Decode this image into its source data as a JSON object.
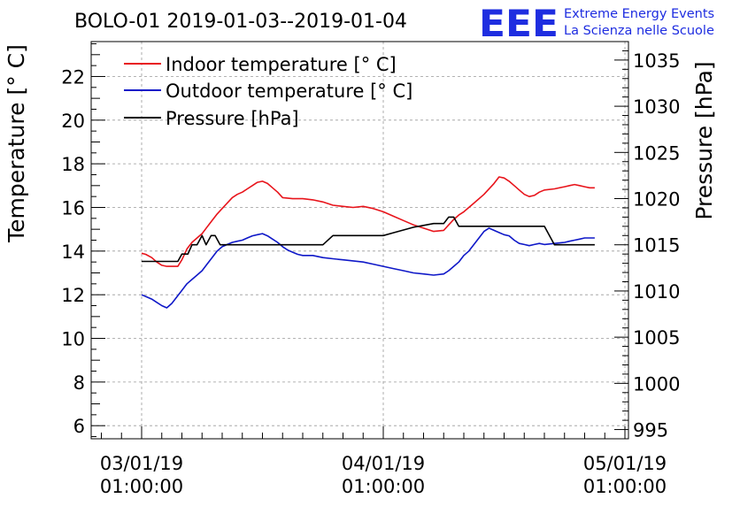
{
  "chart_data": {
    "type": "line",
    "title": "BOLO-01 2019-01-03--2019-01-04",
    "ylabel": "Temperature [° C]",
    "y2label": "Pressure [hPa]",
    "xlabel": "",
    "ylim": [
      5.4,
      23.6
    ],
    "y2lim": [
      994,
      1037
    ],
    "yticks": [
      "6",
      "8",
      "10",
      "12",
      "14",
      "16",
      "18",
      "20",
      "22"
    ],
    "y2ticks": [
      "995",
      "1000",
      "1005",
      "1010",
      "1015",
      "1020",
      "1025",
      "1030",
      "1035"
    ],
    "xticks": [
      {
        "line1": "03/01/19",
        "line2": "01:00:00",
        "hours": 0
      },
      {
        "line1": "04/01/19",
        "line2": "01:00:00",
        "hours": 24
      },
      {
        "line1": "05/01/19",
        "line2": "01:00:00",
        "hours": 48
      }
    ],
    "xlim_hours": [
      -5,
      49
    ],
    "grid": true,
    "legend_position": "top-left",
    "series": [
      {
        "name": "Indoor temperature [° C]",
        "color": "#e8141b",
        "axis": "left",
        "x_hours": [
          0,
          0.4,
          1,
          1.5,
          2,
          2.5,
          3,
          3.6,
          4,
          4.5,
          5,
          5.5,
          6,
          6.5,
          7,
          7.5,
          8,
          8.5,
          9,
          9.5,
          10,
          10.5,
          11,
          11.5,
          12,
          12.5,
          13,
          13.5,
          14,
          15,
          16,
          17,
          18,
          19,
          20,
          21,
          22,
          23,
          24,
          25,
          26,
          27,
          28,
          29,
          30,
          30.5,
          31,
          31.5,
          32,
          33,
          34,
          35,
          35.5,
          36,
          36.5,
          37,
          37.5,
          38,
          38.5,
          39,
          39.5,
          40,
          41,
          42,
          42.5,
          43,
          43.5,
          44,
          44.5,
          45
        ],
        "values": [
          13.9,
          13.85,
          13.7,
          13.5,
          13.35,
          13.3,
          13.3,
          13.3,
          13.6,
          14.1,
          14.4,
          14.6,
          14.8,
          15.1,
          15.4,
          15.7,
          15.95,
          16.2,
          16.45,
          16.6,
          16.7,
          16.85,
          17.0,
          17.15,
          17.2,
          17.1,
          16.9,
          16.7,
          16.45,
          16.4,
          16.4,
          16.35,
          16.25,
          16.1,
          16.05,
          16.0,
          16.05,
          15.95,
          15.8,
          15.6,
          15.4,
          15.2,
          15.05,
          14.9,
          14.95,
          15.2,
          15.45,
          15.65,
          15.8,
          16.2,
          16.6,
          17.1,
          17.4,
          17.35,
          17.2,
          17.0,
          16.8,
          16.6,
          16.5,
          16.55,
          16.7,
          16.8,
          16.85,
          16.95,
          17.0,
          17.05,
          17.0,
          16.95,
          16.9,
          16.9
        ],
        "label_hidden": false
      },
      {
        "name": "Outdoor temperature [° C]",
        "color": "#0f18c8",
        "axis": "left",
        "x_hours": [
          0,
          0.5,
          1,
          1.5,
          2,
          2.5,
          3,
          3.5,
          4,
          4.5,
          5,
          5.5,
          6,
          6.5,
          7,
          7.5,
          8,
          8.5,
          9,
          9.5,
          10,
          10.5,
          11,
          11.5,
          12,
          12.5,
          13,
          13.5,
          14,
          14.5,
          15,
          15.5,
          16,
          17,
          18,
          19,
          20,
          21,
          22,
          23,
          24,
          25,
          26,
          27,
          28,
          29,
          30,
          30.5,
          31,
          31.5,
          32,
          32.5,
          33,
          33.5,
          34,
          34.5,
          35,
          35.5,
          36,
          36.5,
          37,
          37.5,
          38,
          38.5,
          39,
          39.5,
          40,
          41,
          42,
          42.5,
          43,
          43.5,
          44,
          44.5,
          45
        ],
        "values": [
          12.0,
          11.9,
          11.8,
          11.65,
          11.5,
          11.4,
          11.6,
          11.9,
          12.2,
          12.5,
          12.7,
          12.9,
          13.1,
          13.4,
          13.7,
          14.0,
          14.2,
          14.3,
          14.4,
          14.45,
          14.5,
          14.6,
          14.7,
          14.75,
          14.8,
          14.7,
          14.55,
          14.4,
          14.2,
          14.05,
          13.95,
          13.85,
          13.8,
          13.8,
          13.7,
          13.65,
          13.6,
          13.55,
          13.5,
          13.4,
          13.3,
          13.2,
          13.1,
          13.0,
          12.95,
          12.9,
          12.95,
          13.1,
          13.3,
          13.5,
          13.8,
          14.0,
          14.3,
          14.6,
          14.9,
          15.05,
          14.95,
          14.85,
          14.75,
          14.7,
          14.5,
          14.35,
          14.3,
          14.25,
          14.3,
          14.35,
          14.3,
          14.35,
          14.4,
          14.45,
          14.5,
          14.55,
          14.6,
          14.6,
          14.6
        ]
      },
      {
        "name": "Pressure [hPa]",
        "color": "#000000",
        "axis": "right",
        "x_hours": [
          0,
          1,
          2,
          3,
          3.6,
          4,
          4.6,
          5,
          5.5,
          6,
          6.4,
          6.9,
          7.3,
          7.8,
          8.2,
          8.6,
          9,
          9.5,
          10,
          11,
          12,
          13,
          14,
          15,
          16,
          17,
          18,
          19,
          20,
          21,
          22,
          23,
          24,
          25,
          26,
          27,
          28,
          29,
          30,
          30.5,
          31,
          31.5,
          32,
          33,
          34,
          35,
          36,
          37,
          38,
          39,
          40,
          41,
          42,
          43,
          44,
          45
        ],
        "values": [
          1013.2,
          1013.2,
          1013.2,
          1013.2,
          1013.2,
          1014,
          1014,
          1015,
          1015,
          1016,
          1015,
          1016,
          1016,
          1015,
          1015,
          1015,
          1015,
          1015,
          1015,
          1015,
          1015,
          1015,
          1015,
          1015,
          1015,
          1015,
          1015,
          1016,
          1016,
          1016,
          1016,
          1016,
          1016,
          1016.3,
          1016.6,
          1016.9,
          1017.1,
          1017.3,
          1017.3,
          1018,
          1018,
          1017,
          1017,
          1017,
          1017,
          1017,
          1017,
          1017,
          1017,
          1017,
          1017,
          1015,
          1015,
          1015,
          1015,
          1015
        ]
      }
    ]
  },
  "logo": {
    "letters": "EEE",
    "line1": "Extreme Energy Events",
    "line2": "La Scienza nelle Scuole"
  }
}
